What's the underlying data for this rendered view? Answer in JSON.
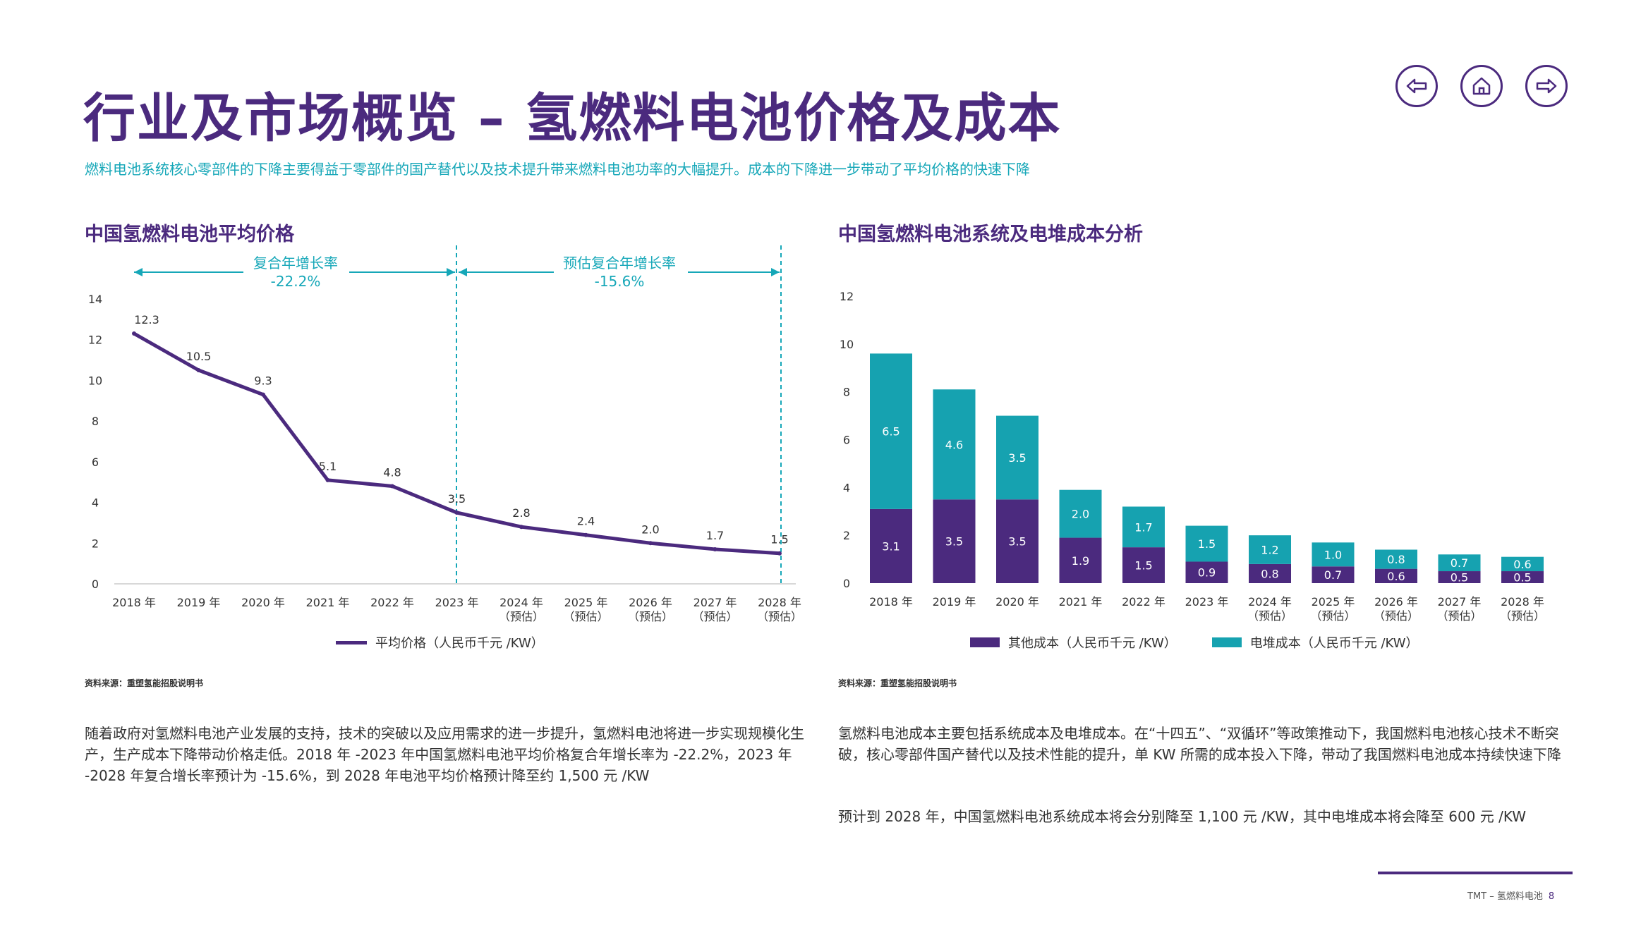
{
  "page": {
    "title": "行业及市场概览 – 氢燃料电池价格及成本",
    "subtitle": "燃料电池系统核心零部件的下降主要得益于零部件的国产替代以及技术提升带来燃料电池功率的大幅提升。成本的下降进一步带动了平均价格的快速下降",
    "nav": {
      "back": "back-icon",
      "home": "home-icon",
      "forward": "forward-icon"
    },
    "footer": {
      "text": "TMT – 氢燃料电池",
      "page_number": "8"
    }
  },
  "colors": {
    "purple": "#4b2a7e",
    "teal": "#16a2b0",
    "cyan_text": "#16a7b8"
  },
  "left": {
    "section_title": "中国氢燃料电池平均价格",
    "cagr_past_label": "复合年增长率",
    "cagr_past_value": "-22.2%",
    "cagr_future_label": "预估复合年增长率",
    "cagr_future_value": "-15.6%",
    "legend_label": "平均价格（人民币千元 /KW）",
    "source": "资料来源：重塑氢能招股说明书",
    "paragraph": "随着政府对氢燃料电池产业发展的支持，技术的突破以及应用需求的进一步提升，氢燃料电池将进一步实现规模化生产，生产成本下降带动价格走低。2018 年 -2023 年中国氢燃料电池平均价格复合年增长率为 -22.2%，2023 年 -2028 年复合增长率预计为 -15.6%，到 2028 年电池平均价格预计降至约 1,500 元 /KW"
  },
  "right": {
    "section_title": "中国氢燃料电池系统及电堆成本分析",
    "legend_other": "其他成本（人民币千元 /KW）",
    "legend_stack": "电堆成本（人民币千元 /KW）",
    "source": "资料来源：重塑氢能招股说明书",
    "paragraph1": "氢燃料电池成本主要包括系统成本及电堆成本。在“十四五”、“双循环”等政策推动下，我国燃料电池核心技术不断突破，核心零部件国产替代以及技术性能的提升，单 KW 所需的成本投入下降，带动了我国燃料电池成本持续快速下降",
    "paragraph2": "预计到 2028 年，中国氢燃料电池系统成本将会分别降至 1,100 元 /KW，其中电堆成本将会降至 600 元 /KW"
  },
  "chart_data": [
    {
      "type": "line",
      "title": "中国氢燃料电池平均价格",
      "categories": [
        [
          "2018 年"
        ],
        [
          "2019 年"
        ],
        [
          "2020 年"
        ],
        [
          "2021 年"
        ],
        [
          "2022 年"
        ],
        [
          "2023 年"
        ],
        [
          "2024 年",
          "（预估）"
        ],
        [
          "2025 年",
          "（预估）"
        ],
        [
          "2026 年",
          "（预估）"
        ],
        [
          "2027 年",
          "（预估）"
        ],
        [
          "2028 年",
          "（预估）"
        ]
      ],
      "series": [
        {
          "name": "平均价格（人民币千元 /KW）",
          "values": [
            12.3,
            10.5,
            9.3,
            5.1,
            4.8,
            3.5,
            2.8,
            2.4,
            2.0,
            1.7,
            1.5
          ]
        }
      ],
      "yticks": [
        0,
        2,
        4,
        6,
        8,
        10,
        12,
        14
      ],
      "ylim": [
        0,
        14
      ],
      "grid": false,
      "legend": "bottom"
    },
    {
      "type": "bar",
      "stacked": true,
      "title": "中国氢燃料电池系统及电堆成本分析",
      "categories": [
        [
          "2018 年"
        ],
        [
          "2019 年"
        ],
        [
          "2020 年"
        ],
        [
          "2021 年"
        ],
        [
          "2022 年"
        ],
        [
          "2023 年"
        ],
        [
          "2024 年",
          "（预估）"
        ],
        [
          "2025 年",
          "（预估）"
        ],
        [
          "2026 年",
          "（预估）"
        ],
        [
          "2027 年",
          "（预估）"
        ],
        [
          "2028 年",
          "（预估）"
        ]
      ],
      "series": [
        {
          "name": "其他成本（人民币千元 /KW）",
          "values": [
            3.1,
            3.5,
            3.5,
            1.9,
            1.5,
            0.9,
            0.8,
            0.7,
            0.6,
            0.5,
            0.5
          ]
        },
        {
          "name": "电堆成本（人民币千元 /KW）",
          "values": [
            6.5,
            4.6,
            3.5,
            2.0,
            1.7,
            1.5,
            1.2,
            1.0,
            0.8,
            0.7,
            0.6
          ]
        }
      ],
      "yticks": [
        0,
        2,
        4,
        6,
        8,
        10,
        12
      ],
      "ylim": [
        0,
        12
      ],
      "grid": false,
      "legend": "bottom"
    }
  ]
}
